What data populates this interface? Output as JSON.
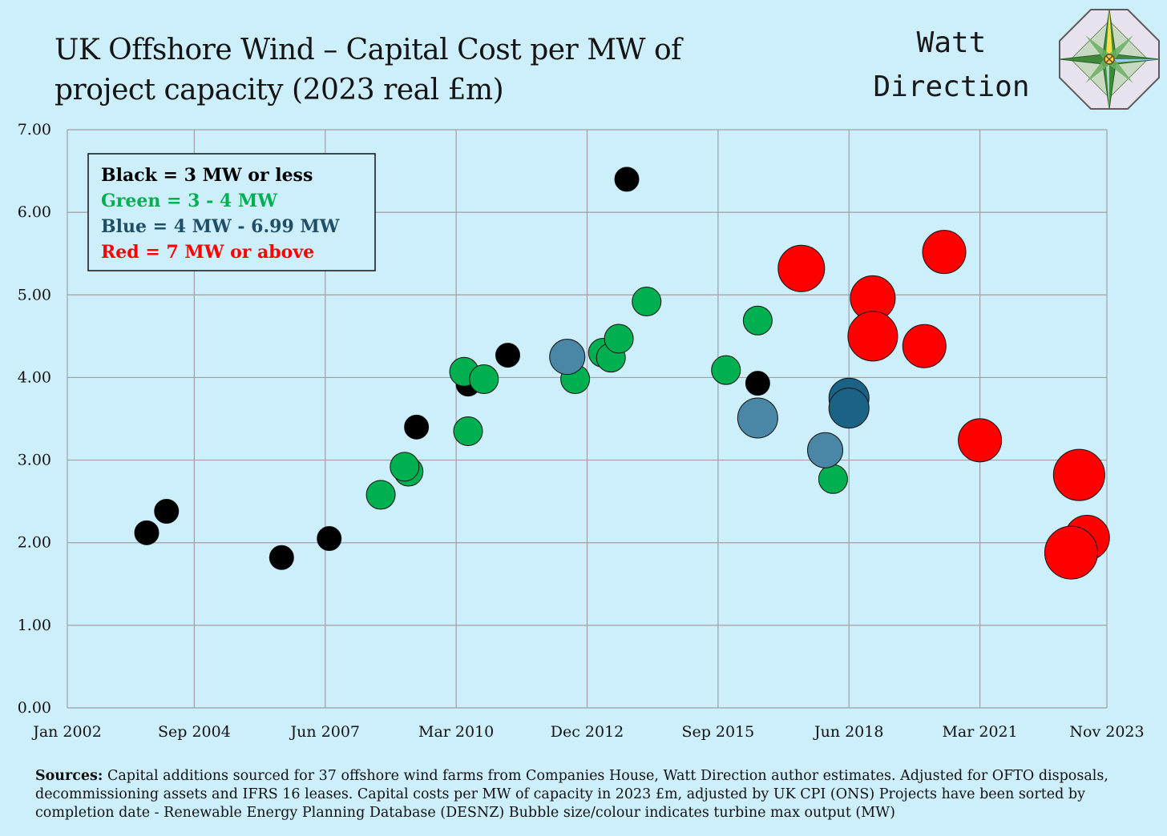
{
  "header": {
    "title_line1": "UK Offshore Wind – Capital Cost per MW of",
    "title_line2": "project capacity  (2023 real £m)",
    "brand_line1": "Watt",
    "brand_line2": "Direction"
  },
  "legend": [
    {
      "text": "Black = 3 MW or less",
      "color": "#000000"
    },
    {
      "text": "Green = 3 - 4 MW",
      "color": "#00b050"
    },
    {
      "text": "Blue = 4 MW -  6.99 MW",
      "color": "#1f4e66"
    },
    {
      "text": "Red =  7 MW or above",
      "color": "#ff0000"
    }
  ],
  "footer": {
    "sources_label": "Sources:",
    "sources_text": "Capital additions sourced for 37 offshore wind farms from Companies House, Watt Direction author estimates. Adjusted for OFTO disposals, decommissioning assets and IFRS 16 leases. Capital costs per MW of capacity in 2023 £m, adjusted by  UK CPI (ONS) Projects have been sorted by completion date - Renewable Energy Planning Database (DESNZ) Bubble size/colour indicates turbine max output (MW)"
  },
  "colors": {
    "black": "#000000",
    "green": "#00b050",
    "blue": "#4a87a6",
    "darkblue": "#1b6287",
    "red": "#ff0000",
    "background": "#cdeefb",
    "grid": "#a0a0a0"
  },
  "chart_data": {
    "type": "scatter",
    "xlabel": "",
    "ylabel": "",
    "x_tick_labels": [
      "Jan 2002",
      "Sep 2004",
      "Jun 2007",
      "Mar 2010",
      "Dec 2012",
      "Sep 2015",
      "Jun 2018",
      "Mar 2021",
      "Nov 2023"
    ],
    "y_tick_labels": [
      "0.00",
      "1.00",
      "2.00",
      "3.00",
      "4.00",
      "5.00",
      "6.00",
      "7.00"
    ],
    "ylim": [
      0,
      7
    ],
    "xlim": [
      "Jan 2002",
      "Nov 2023"
    ],
    "grid": true,
    "legend_position": "top-left",
    "series": [
      {
        "name": "Black = 3 MW or less",
        "color": "black",
        "points": [
          {
            "x": "Sep 2003",
            "y": 2.12
          },
          {
            "x": "Feb 2004",
            "y": 2.38
          },
          {
            "x": "Jul 2006",
            "y": 1.82
          },
          {
            "x": "Jul 2007",
            "y": 2.05
          },
          {
            "x": "May 2009",
            "y": 3.4
          },
          {
            "x": "Jun 2010",
            "y": 3.92
          },
          {
            "x": "Apr 2011",
            "y": 4.27
          },
          {
            "x": "Oct 2013",
            "y": 6.4
          },
          {
            "x": "Jul 2016",
            "y": 3.93
          }
        ]
      },
      {
        "name": "Green = 3 - 4 MW",
        "color": "green",
        "points": [
          {
            "x": "Aug 2008",
            "y": 2.58
          },
          {
            "x": "Mar 2009",
            "y": 2.86
          },
          {
            "x": "Feb 2009",
            "y": 2.92
          },
          {
            "x": "Jun 2010",
            "y": 3.35
          },
          {
            "x": "May 2010",
            "y": 4.07
          },
          {
            "x": "Oct 2010",
            "y": 3.98
          },
          {
            "x": "Sep 2012",
            "y": 3.98
          },
          {
            "x": "Apr 2013",
            "y": 4.3
          },
          {
            "x": "Jun 2013",
            "y": 4.24
          },
          {
            "x": "Aug 2013",
            "y": 4.47
          },
          {
            "x": "Mar 2014",
            "y": 4.92
          },
          {
            "x": "Nov 2015",
            "y": 4.09
          },
          {
            "x": "Jul 2016",
            "y": 4.69
          },
          {
            "x": "Feb 2018",
            "y": 2.77
          }
        ]
      },
      {
        "name": "Blue = 4 MW -  6.99 MW",
        "color": "blue",
        "points": [
          {
            "x": "Jul 2012",
            "y": 4.25
          },
          {
            "x": "Jul 2016",
            "y": 3.51
          },
          {
            "x": "Dec 2017",
            "y": 3.12
          },
          {
            "x": "Jun 2018",
            "y": 3.75
          },
          {
            "x": "Jun 2018",
            "y": 3.63
          }
        ]
      },
      {
        "name": "Red =  7 MW or above",
        "color": "red",
        "points": [
          {
            "x": "Jun 2017",
            "y": 5.32
          },
          {
            "x": "Dec 2018",
            "y": 4.96
          },
          {
            "x": "Dec 2018",
            "y": 4.5
          },
          {
            "x": "Jan 2020",
            "y": 4.38
          },
          {
            "x": "Jun 2020",
            "y": 5.52
          },
          {
            "x": "Mar 2021",
            "y": 3.24
          },
          {
            "x": "Apr 2023",
            "y": 2.82
          },
          {
            "x": "Jun 2023",
            "y": 2.06
          },
          {
            "x": "Feb 2023",
            "y": 1.88
          }
        ]
      }
    ]
  }
}
